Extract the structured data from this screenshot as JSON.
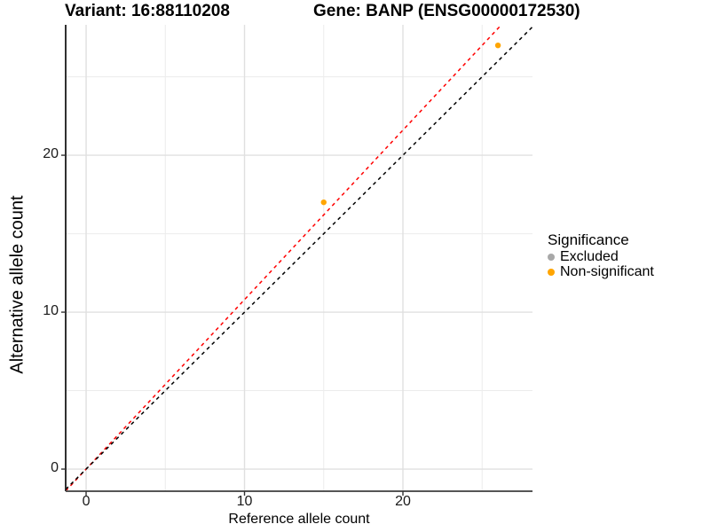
{
  "figure": {
    "title_variant": "Variant: 16:88110208",
    "title_gene": "Gene: BANP (ENSG00000172530)"
  },
  "legend": {
    "title": "Significance",
    "items": [
      {
        "label": "Excluded",
        "color": "#a8a8a8"
      },
      {
        "label": "Non-significant",
        "color": "#ffa500"
      }
    ]
  },
  "chart_data": {
    "type": "scatter",
    "title": "Variant: 16:88110208 / Gene: BANP (ENSG00000172530)",
    "xlabel": "Reference allele count",
    "ylabel": "Alternative allele count",
    "xlim": [
      -1.29,
      28.18
    ],
    "ylim": [
      -1.41,
      28.31
    ],
    "x_ticks": [
      0,
      10,
      20
    ],
    "y_ticks": [
      0,
      10,
      20
    ],
    "grid_major": [
      0,
      10,
      20
    ],
    "grid_minor": [
      5,
      15,
      25
    ],
    "grid": true,
    "legend_position": "right-middle",
    "series": [
      {
        "name": "Non-significant",
        "color": "#ffa500",
        "points": [
          [
            15,
            17
          ],
          [
            26,
            27
          ]
        ]
      },
      {
        "name": "Excluded",
        "color": "#a8a8a8",
        "points": []
      }
    ],
    "reference_lines": [
      {
        "name": "fit-line",
        "color": "#ff0000",
        "style": "dashed",
        "slope": 1.08,
        "intercept": 0
      },
      {
        "name": "identity-line",
        "color": "#000000",
        "style": "dashed",
        "slope": 1,
        "intercept": 0
      }
    ],
    "colors": {
      "grid_major": "#e0e0e0",
      "grid_minor": "#ececec",
      "axis_line_left": "#1a1a1a",
      "axis_line_bottom": "#555555",
      "tick": "#333333"
    }
  }
}
